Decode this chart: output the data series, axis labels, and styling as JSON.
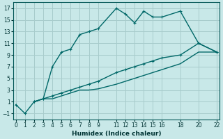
{
  "xlabel": "Humidex (Indice chaleur)",
  "bg_color": "#c8e8e8",
  "grid_color": "#a8cccc",
  "line_color": "#006868",
  "xlim": [
    -0.3,
    22.3
  ],
  "ylim": [
    -2,
    18
  ],
  "xticks": [
    0,
    1,
    2,
    3,
    4,
    5,
    6,
    7,
    8,
    9,
    11,
    12,
    13,
    14,
    15,
    16,
    18,
    20,
    22
  ],
  "yticks": [
    -1,
    1,
    3,
    5,
    7,
    9,
    11,
    13,
    15,
    17
  ],
  "line1_x": [
    0,
    1,
    2,
    3,
    4,
    5,
    6,
    7,
    8,
    9,
    11,
    12,
    13,
    14,
    15,
    16,
    18,
    20,
    22
  ],
  "line1_y": [
    0.5,
    -1,
    1,
    1.5,
    7,
    9.5,
    10,
    12.5,
    13,
    13.5,
    17,
    16,
    14.5,
    16.5,
    15.5,
    15.5,
    16.5,
    11,
    9.5
  ],
  "line2_x": [
    2,
    3,
    4,
    5,
    6,
    7,
    8,
    9,
    11,
    12,
    13,
    14,
    15,
    16,
    18,
    20,
    22
  ],
  "line2_y": [
    1,
    1.5,
    2,
    2.5,
    3,
    3.5,
    4,
    4.5,
    6,
    6.5,
    7,
    7.5,
    8,
    8.5,
    9,
    11,
    9.5
  ],
  "line3_x": [
    2,
    3,
    4,
    5,
    6,
    7,
    8,
    9,
    11,
    12,
    13,
    14,
    15,
    16,
    18,
    20,
    22
  ],
  "line3_y": [
    1,
    1.5,
    1.5,
    2,
    2.5,
    3,
    3.0,
    3.2,
    4,
    4.5,
    5,
    5.5,
    6,
    6.5,
    7.5,
    9.5,
    9.5
  ]
}
